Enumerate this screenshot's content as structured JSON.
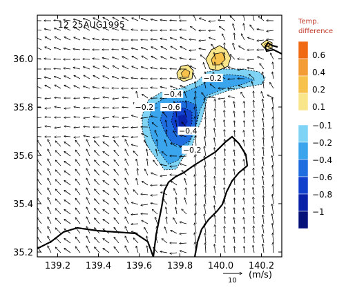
{
  "panel_label": "12 25AUG1995",
  "axes": {
    "lon": {
      "min": 139.1,
      "max": 140.3,
      "ticks": [
        "139.2",
        "139.4",
        "139.6",
        "139.8",
        "140.0",
        "140.2"
      ]
    },
    "lat": {
      "min": 35.18,
      "max": 36.18,
      "ticks": [
        "35.2",
        "35.4",
        "35.6",
        "35.8",
        "36.0"
      ]
    }
  },
  "legend": {
    "title_line1": "Temp.",
    "title_line2": "difference",
    "positive": [
      {
        "label": "0.6",
        "color": "#f06a14"
      },
      {
        "label": "0.4",
        "color": "#f39c36"
      },
      {
        "label": "0.2",
        "color": "#f7c24c"
      },
      {
        "label": "0.1",
        "color": "#f9e68a"
      }
    ],
    "negative": [
      {
        "label": "−0.1",
        "color": "#7fd3f5"
      },
      {
        "label": "−0.2",
        "color": "#3aa4ec"
      },
      {
        "label": "−0.4",
        "color": "#1e6ee0"
      },
      {
        "label": "−0.6",
        "color": "#1040cc"
      },
      {
        "label": "−0.8",
        "color": "#0a22a8"
      },
      {
        "label": "−1",
        "color": "#06127a"
      }
    ]
  },
  "contour_labels": [
    {
      "text": "−0.2",
      "lon": 139.96,
      "lat": 35.912
    },
    {
      "text": "−0.4",
      "lon": 139.765,
      "lat": 35.846
    },
    {
      "text": "−0.2",
      "lon": 139.625,
      "lat": 35.791
    },
    {
      "text": "−0.6",
      "lon": 139.755,
      "lat": 35.791
    },
    {
      "text": "−0.4",
      "lon": 139.84,
      "lat": 35.693
    },
    {
      "text": "−0.2",
      "lon": 139.86,
      "lat": 35.615
    }
  ],
  "reference_vector": {
    "value": "10",
    "unit": "(m/s)"
  }
}
